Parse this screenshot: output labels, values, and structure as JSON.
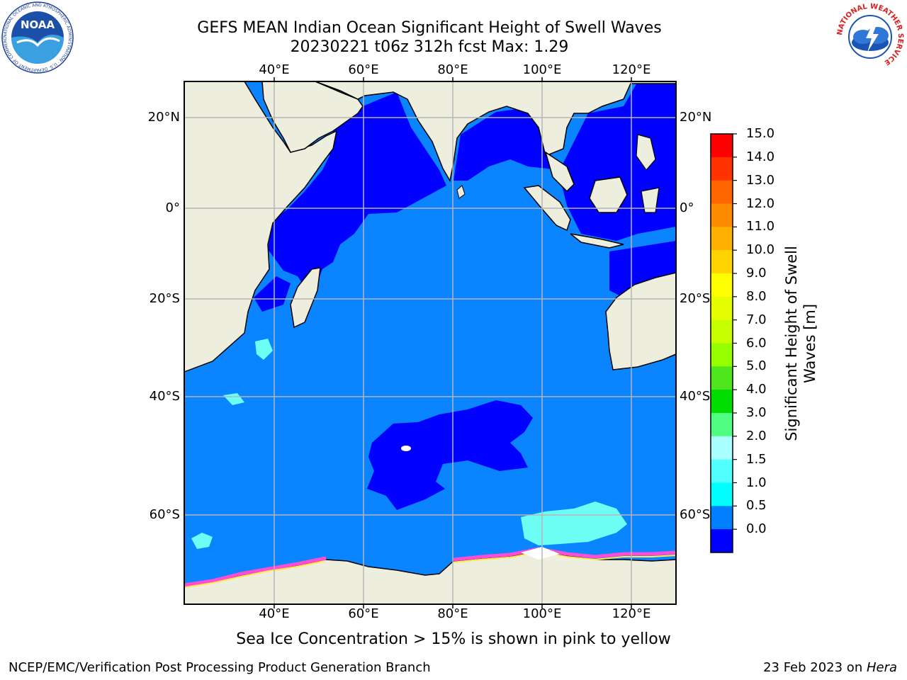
{
  "title": {
    "line1": "GEFS MEAN Indian Ocean Significant Height of Swell Waves",
    "line2": "20230221 t06z 312h fcst   Max: 1.29"
  },
  "axes": {
    "lon_ticks": [
      "40°E",
      "60°E",
      "80°E",
      "100°E",
      "120°E"
    ],
    "lat_ticks_left": [
      "20°N",
      "0°",
      "20°S",
      "40°S",
      "60°S"
    ],
    "lat_ticks_right": [
      "20°N",
      "0°",
      "20°S",
      "40°S",
      "60°S"
    ],
    "lon_range": [
      20,
      130
    ],
    "lat_range": [
      -75,
      28
    ]
  },
  "colorbar": {
    "title_line1": "Significant Height of Swell",
    "title_line2": "Waves [m]",
    "labels": [
      "15.0",
      "14.0",
      "13.0",
      "12.0",
      "11.0",
      "10.0",
      "9.0",
      "8.0",
      "7.0",
      "6.0",
      "5.0",
      "4.0",
      "3.0",
      "2.0",
      "1.5",
      "1.0",
      "0.5",
      "0.0"
    ],
    "colors": [
      "#ff0000",
      "#ff3300",
      "#ff6600",
      "#ff8c00",
      "#ffb000",
      "#ffd400",
      "#ffff00",
      "#e6ff00",
      "#c8ff00",
      "#96ff00",
      "#50e61e",
      "#00dc00",
      "#50ff82",
      "#aaffff",
      "#50ffff",
      "#00ffff",
      "#0080ff",
      "#0000ff"
    ]
  },
  "map_colors": {
    "land": "#eeeedf",
    "deep_blue": "#0000ff",
    "ocean_mid": "#0a84ff",
    "cyan_light": "#6dfff5",
    "ice_pink": "#ff4dd2",
    "ice_yellow": "#ffeb4d",
    "grid": "#b5b5b5"
  },
  "footnote": "Sea Ice Concentration > 15% is shown in pink to yellow",
  "credit": "NCEP/EMC/Verification Post Processing Product Generation Branch",
  "date": {
    "text": "23 Feb 2023 on ",
    "machine": "Hera"
  },
  "logos": {
    "noaa": "NOAA",
    "noaa_ring": "NATIONAL OCEANIC AND ATMOSPHERIC ADMINISTRATION · U.S. DEPARTMENT OF COMMERCE",
    "nws_ring": "NATIONAL WEATHER SERVICE"
  }
}
